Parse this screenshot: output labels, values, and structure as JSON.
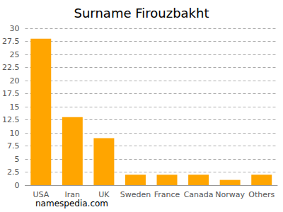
{
  "chart_data": {
    "type": "bar",
    "title": "Surname Firouzbakht",
    "categories": [
      "USA",
      "Iran",
      "UK",
      "Sweden",
      "France",
      "Canada",
      "Norway",
      "Others"
    ],
    "values": [
      28,
      13,
      9,
      2,
      2,
      2,
      1,
      2
    ],
    "color": "#ffa500",
    "ylim": [
      0,
      30
    ],
    "yticks": [
      0,
      2.5,
      5,
      7.5,
      10,
      12.5,
      15,
      17.5,
      20,
      22.5,
      25,
      27.5,
      30
    ],
    "grid": true,
    "annotations": [
      "namespedia.com"
    ]
  }
}
